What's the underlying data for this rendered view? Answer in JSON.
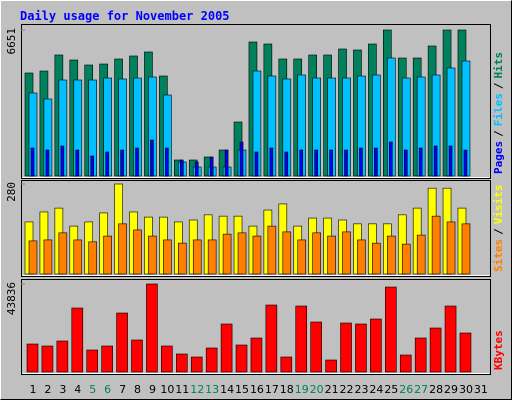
{
  "title": "Daily usage for November 2005",
  "chart_data": [
    {
      "type": "bar",
      "ylim": [
        0,
        6651
      ],
      "yticks": [
        6651
      ],
      "legend_separator": "/",
      "series": [
        {
          "name": "Hits",
          "color": "#00805c",
          "values": [
            4692,
            4783,
            5512,
            5284,
            5057,
            5102,
            5330,
            5467,
            5649,
            4555,
            729,
            729,
            866,
            1184,
            2460,
            6104,
            6013,
            5330,
            5330,
            5512,
            5512,
            5785,
            5740,
            6013,
            6651,
            5375,
            5375,
            5922,
            6651,
            6651,
            null
          ]
        },
        {
          "name": "Files",
          "color": "#00c0ff",
          "values": [
            3781,
            3508,
            4373,
            4373,
            4373,
            4464,
            4419,
            4464,
            4510,
            3690,
            638,
            410,
            410,
            410,
            1184,
            4783,
            4555,
            4419,
            4601,
            4464,
            4464,
            4464,
            4555,
            4601,
            5375,
            4464,
            4510,
            4601,
            4920,
            5238,
            null
          ]
        },
        {
          "name": "Pages",
          "color": "#0000ff",
          "values": [
            1275,
            1184,
            1367,
            1184,
            911,
            1093,
            1184,
            1275,
            1640,
            1275,
            729,
            638,
            865,
            1184,
            1549,
            1093,
            1275,
            1093,
            1184,
            1184,
            1184,
            1184,
            1275,
            1275,
            1549,
            1184,
            1275,
            1367,
            1367,
            1184,
            null
          ]
        }
      ]
    },
    {
      "type": "bar",
      "ylim": [
        0,
        280
      ],
      "yticks": [
        280
      ],
      "legend_separator": "/",
      "series": [
        {
          "name": "Visits",
          "color": "#ffff00",
          "values": [
            162,
            193,
            205,
            149,
            162,
            190,
            280,
            193,
            177,
            177,
            162,
            168,
            184,
            180,
            180,
            149,
            199,
            218,
            149,
            174,
            174,
            168,
            156,
            156,
            156,
            184,
            205,
            267,
            267,
            205,
            null
          ]
        },
        {
          "name": "Sites",
          "color": "#ff8000",
          "values": [
            103,
            106,
            128,
            106,
            100,
            118,
            156,
            137,
            118,
            106,
            96,
            106,
            106,
            124,
            128,
            118,
            149,
            131,
            106,
            128,
            118,
            131,
            106,
            96,
            118,
            93,
            121,
            180,
            162,
            156,
            null
          ]
        }
      ]
    },
    {
      "type": "bar",
      "ylim": [
        0,
        43836
      ],
      "yticks": [
        43836
      ],
      "categories": [
        "1",
        "2",
        "3",
        "4",
        "5",
        "6",
        "7",
        "8",
        "9",
        "10",
        "11",
        "12",
        "13",
        "14",
        "15",
        "16",
        "17",
        "18",
        "19",
        "20",
        "21",
        "22",
        "23",
        "24",
        "25",
        "26",
        "27",
        "28",
        "29",
        "30",
        "31"
      ],
      "label_colors": [
        "#000000",
        "#000000",
        "#000000",
        "#000000",
        "#00805c",
        "#00805c",
        "#000000",
        "#000000",
        "#000000",
        "#000000",
        "#000000",
        "#00805c",
        "#00805c",
        "#000000",
        "#000000",
        "#000000",
        "#000000",
        "#000000",
        "#00805c",
        "#00805c",
        "#000000",
        "#000000",
        "#000000",
        "#000000",
        "#000000",
        "#00805c",
        "#00805c",
        "#000000",
        "#000000",
        "#000000",
        "#000000"
      ],
      "series": [
        {
          "name": "KBytes",
          "color": "#ff0000",
          "values": [
            13944,
            12948,
            15438,
            31872,
            10956,
            12948,
            29382,
            15936,
            43836,
            12948,
            8964,
            7470,
            11952,
            23904,
            13446,
            16932,
            33366,
            7470,
            32868,
            24900,
            5976,
            24402,
            23904,
            26394,
            42330,
            8466,
            16932,
            21912,
            32868,
            19422,
            null
          ]
        }
      ]
    }
  ]
}
